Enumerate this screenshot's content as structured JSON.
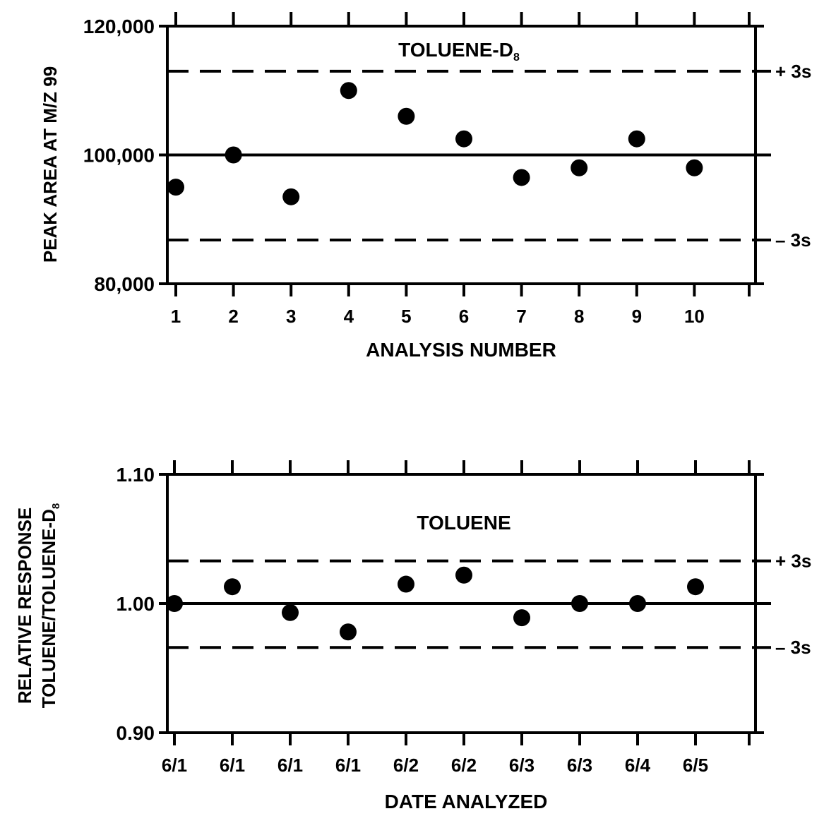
{
  "chart_data": [
    {
      "type": "scatter",
      "title": "TOLUENE-D8",
      "xlabel": "ANALYSIS NUMBER",
      "ylabel": "PEAK AREA AT M/Z 99",
      "categories": [
        "1",
        "2",
        "3",
        "4",
        "5",
        "6",
        "7",
        "8",
        "9",
        "10"
      ],
      "values": [
        95000,
        100000,
        93500,
        110000,
        106000,
        102500,
        96500,
        98000,
        102500,
        98000
      ],
      "ylim": [
        80000,
        120000
      ],
      "yticks": [
        "80,000",
        "100,000",
        "120,000"
      ],
      "center_line": 100000,
      "upper_limit": 113000,
      "lower_limit": 86800,
      "upper_limit_label": "+ 3s",
      "lower_limit_label": "– 3s",
      "grid": false,
      "colors": {
        "ink": "#000000",
        "background": "#ffffff"
      }
    },
    {
      "type": "scatter",
      "title": "TOLUENE",
      "xlabel": "DATE ANALYZED",
      "ylabel": "RELATIVE RESPONSE",
      "ylabel2": "TOLUENE/TOLUENE-D8",
      "categories": [
        "6/1",
        "6/1",
        "6/1",
        "6/1",
        "6/2",
        "6/2",
        "6/3",
        "6/3",
        "6/4",
        "6/5"
      ],
      "values": [
        1.0,
        1.013,
        0.993,
        0.978,
        1.015,
        1.022,
        0.989,
        1.0,
        1.0,
        1.013
      ],
      "ylim": [
        0.9,
        1.1
      ],
      "yticks": [
        "0.90",
        "1.00",
        "1.10"
      ],
      "center_line": 1.0,
      "upper_limit": 1.033,
      "lower_limit": 0.966,
      "upper_limit_label": "+ 3s",
      "lower_limit_label": "– 3s",
      "grid": false,
      "colors": {
        "ink": "#000000",
        "background": "#ffffff"
      }
    }
  ]
}
